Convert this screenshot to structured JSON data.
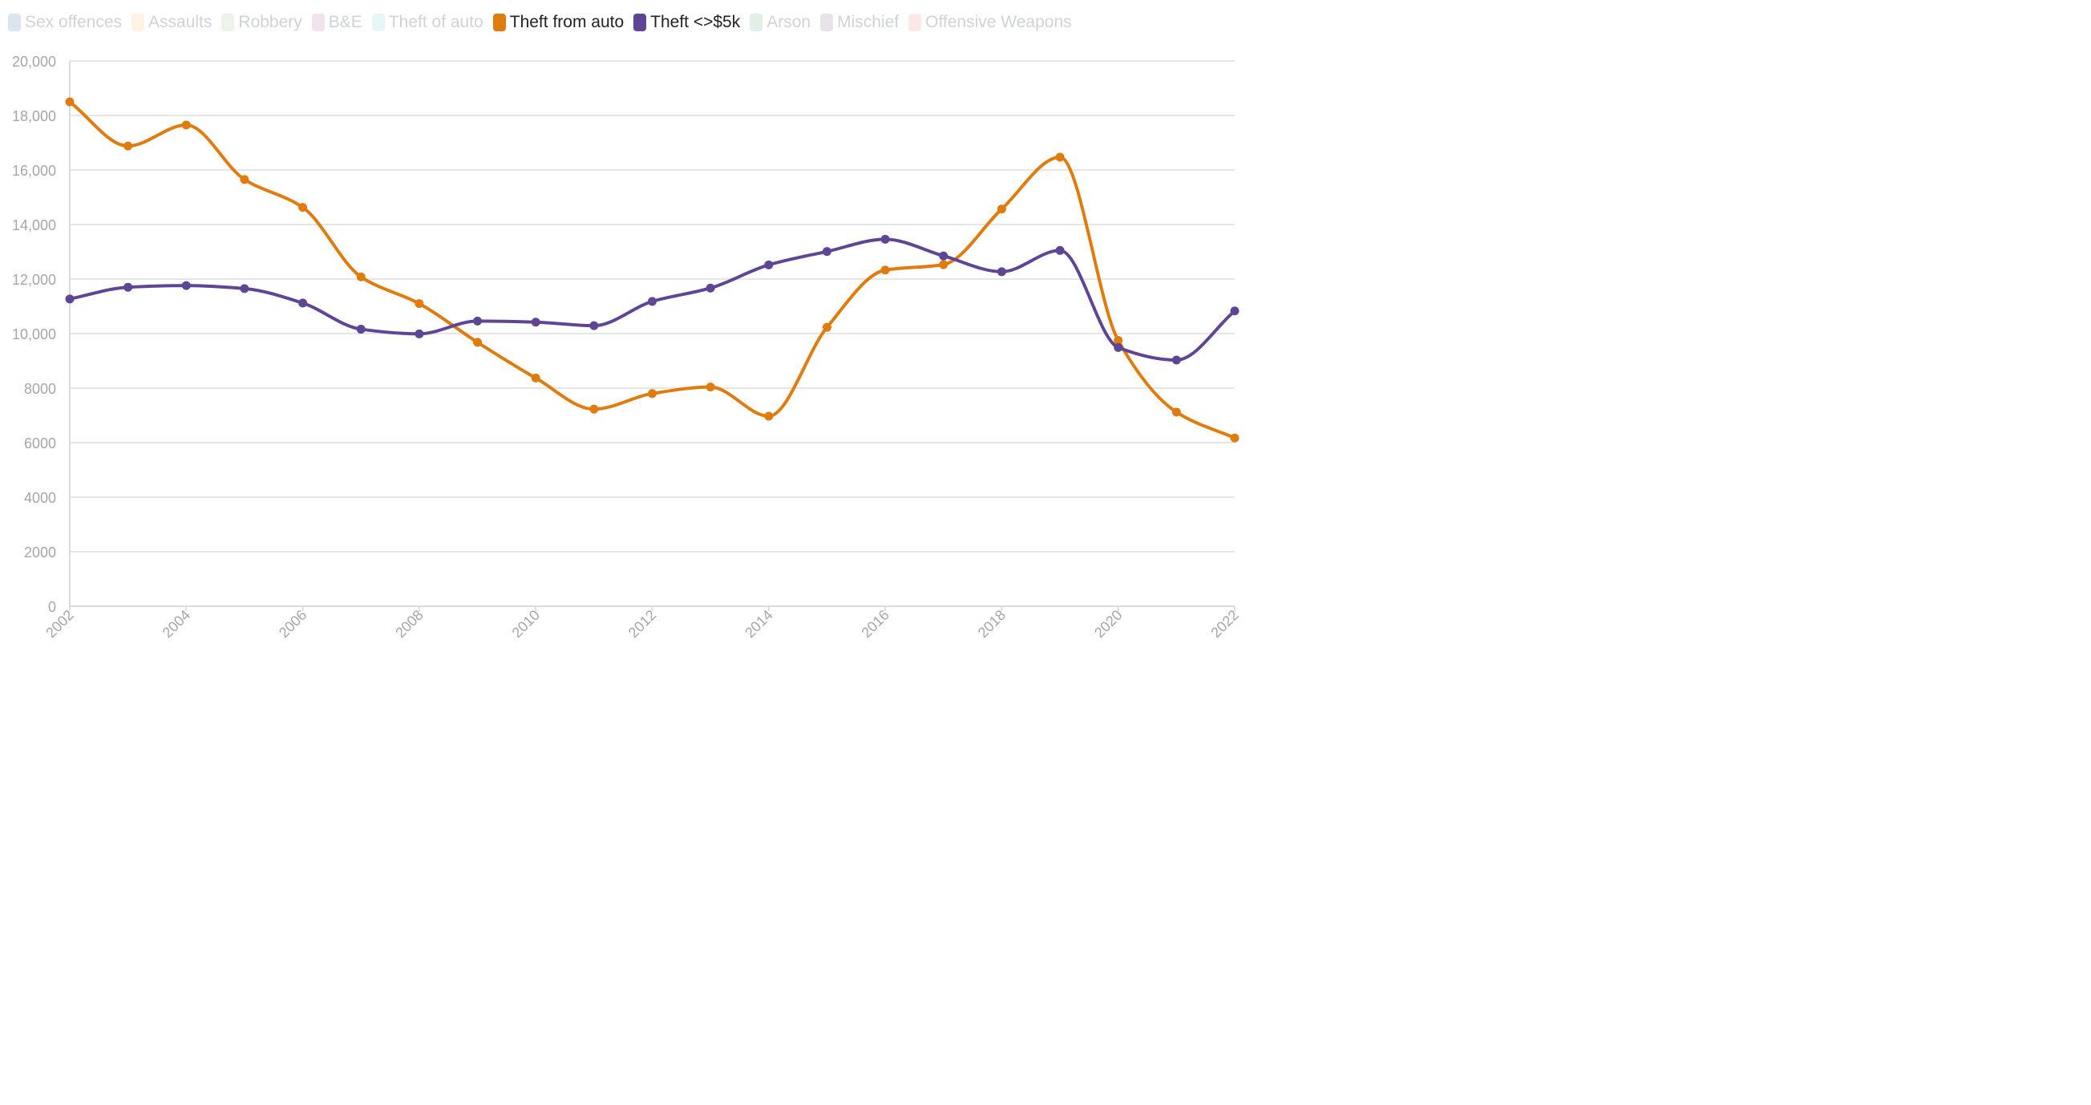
{
  "legend": [
    {
      "label": "Sex offences",
      "color": "#3c6ea8",
      "active": false
    },
    {
      "label": "Assaults",
      "color": "#f5c26b",
      "active": false
    },
    {
      "label": "Robbery",
      "color": "#8fc27a",
      "active": false
    },
    {
      "label": "B&E",
      "color": "#b85e9d",
      "active": false
    },
    {
      "label": "Theft of auto",
      "color": "#7cc7c9",
      "active": false
    },
    {
      "label": "Theft from auto",
      "color": "#e07b0e",
      "active": true
    },
    {
      "label": "Theft <>$5k",
      "color": "#5e4596",
      "active": true
    },
    {
      "label": "Arson",
      "color": "#5aa77c",
      "active": false
    },
    {
      "label": "Mischief",
      "color": "#7d5f8f",
      "active": false
    },
    {
      "label": "Offensive Weapons",
      "color": "#ef7d77",
      "active": false
    }
  ],
  "chart_data": {
    "type": "line",
    "title": "",
    "xlabel": "",
    "ylabel": "",
    "x": [
      2002,
      2003,
      2004,
      2005,
      2006,
      2007,
      2008,
      2009,
      2010,
      2011,
      2012,
      2013,
      2014,
      2015,
      2016,
      2017,
      2018,
      2019,
      2020,
      2021,
      2022
    ],
    "xlim": [
      2002,
      2022
    ],
    "ylim": [
      0,
      20000
    ],
    "x_ticks": [
      "2002",
      "2004",
      "2006",
      "2008",
      "2010",
      "2012",
      "2014",
      "2016",
      "2018",
      "2020",
      "2022"
    ],
    "y_ticks": [
      "0",
      "2000",
      "4000",
      "6000",
      "8000",
      "10,000",
      "12,000",
      "14,000",
      "16,000",
      "18,000",
      "20,000"
    ],
    "grid": true,
    "series": [
      {
        "name": "Theft from auto",
        "color": "#e07b0e",
        "values": [
          18500,
          16880,
          17650,
          15650,
          14630,
          12080,
          11100,
          9680,
          8370,
          7230,
          7800,
          8040,
          6970,
          10230,
          12330,
          12530,
          14570,
          16470,
          9750,
          7120,
          6170
        ]
      },
      {
        "name": "Theft <>$5k",
        "color": "#5e4596",
        "values": [
          11270,
          11700,
          11760,
          11650,
          11120,
          10160,
          9990,
          10460,
          10420,
          10290,
          11180,
          11670,
          12520,
          13010,
          13460,
          12850,
          12270,
          13050,
          9490,
          9030,
          10830
        ]
      }
    ]
  }
}
